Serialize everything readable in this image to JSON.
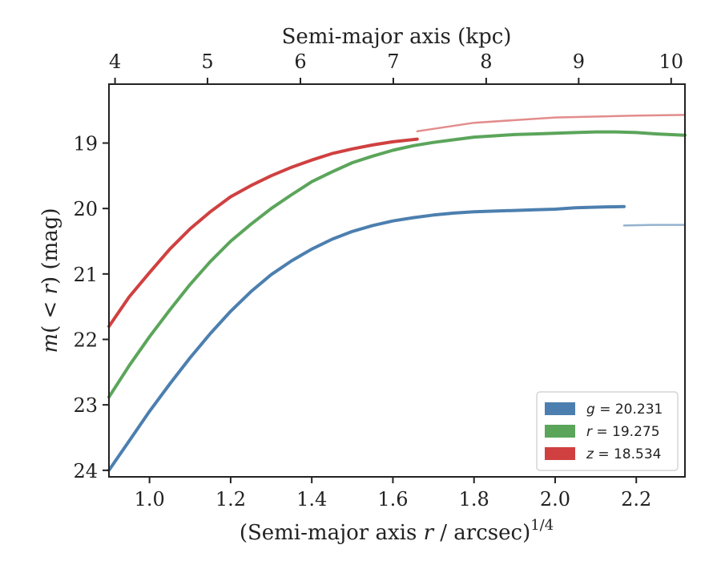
{
  "chart_data": {
    "type": "line",
    "xlabel_prefix": "(Semi-major axis ",
    "xlabel_var": "r",
    "xlabel_mid": " / arcsec)",
    "xlabel_sup": "1/4",
    "ylabel_m": "m",
    "ylabel_paren": "(",
    "ylabel_lt": " < ",
    "ylabel_r": "r",
    "ylabel_close": ")",
    "ylabel_unit": " (mag)",
    "top_xlabel": "Semi-major axis (kpc)",
    "xlim": [
      0.9,
      2.32
    ],
    "ylim": [
      24.1,
      18.1
    ],
    "y_inverted": true,
    "x_ticks": [
      "1.0",
      "1.2",
      "1.4",
      "1.6",
      "1.8",
      "2.0",
      "2.2"
    ],
    "x_tick_values": [
      1.0,
      1.2,
      1.4,
      1.6,
      1.8,
      2.0,
      2.2
    ],
    "y_ticks": [
      "19",
      "20",
      "21",
      "22",
      "23",
      "24"
    ],
    "y_tick_values": [
      19,
      20,
      21,
      22,
      23,
      24
    ],
    "top_x_ticks": [
      "4",
      "5",
      "6",
      "7",
      "8",
      "9",
      "10"
    ],
    "top_x_tick_values": [
      0.915,
      1.143,
      1.372,
      1.601,
      1.83,
      2.058,
      2.286
    ],
    "grid": false,
    "legend_position": "lower-right",
    "series": [
      {
        "name": "g",
        "label_var": "g",
        "label_value": " = 20.231",
        "color": "#4C7FAF",
        "x": [
          0.9,
          0.95,
          1.0,
          1.05,
          1.1,
          1.15,
          1.2,
          1.25,
          1.3,
          1.35,
          1.4,
          1.45,
          1.5,
          1.55,
          1.6,
          1.65,
          1.7,
          1.75,
          1.8,
          1.85,
          1.9,
          1.95,
          2.0,
          2.05,
          2.1,
          2.17
        ],
        "y": [
          24.0,
          23.55,
          23.1,
          22.68,
          22.28,
          21.91,
          21.57,
          21.27,
          21.01,
          20.8,
          20.62,
          20.47,
          20.35,
          20.26,
          20.19,
          20.14,
          20.1,
          20.07,
          20.05,
          20.04,
          20.03,
          20.02,
          20.01,
          19.99,
          19.98,
          19.97
        ],
        "x_faint": [
          2.17,
          2.24,
          2.32
        ],
        "y_faint": [
          20.26,
          20.25,
          20.25
        ]
      },
      {
        "name": "r",
        "label_var": "r",
        "label_value": " = 19.275",
        "color": "#5BA55B",
        "x": [
          0.9,
          0.95,
          1.0,
          1.05,
          1.1,
          1.15,
          1.2,
          1.25,
          1.3,
          1.35,
          1.4,
          1.45,
          1.5,
          1.55,
          1.6,
          1.65,
          1.7,
          1.75,
          1.8,
          1.85,
          1.9,
          1.95,
          2.0,
          2.05,
          2.1,
          2.15,
          2.2,
          2.25,
          2.32
        ],
        "y": [
          22.88,
          22.4,
          21.96,
          21.55,
          21.16,
          20.81,
          20.5,
          20.24,
          20.0,
          19.79,
          19.59,
          19.44,
          19.3,
          19.2,
          19.11,
          19.04,
          18.99,
          18.95,
          18.91,
          18.89,
          18.87,
          18.86,
          18.85,
          18.84,
          18.83,
          18.83,
          18.84,
          18.86,
          18.88
        ]
      },
      {
        "name": "z",
        "label_var": "z",
        "label_value": " = 18.534",
        "color": "#D04040",
        "x": [
          0.9,
          0.95,
          1.0,
          1.05,
          1.1,
          1.15,
          1.2,
          1.25,
          1.3,
          1.35,
          1.4,
          1.45,
          1.5,
          1.55,
          1.6,
          1.66
        ],
        "y": [
          21.8,
          21.35,
          20.98,
          20.62,
          20.31,
          20.05,
          19.82,
          19.65,
          19.5,
          19.37,
          19.26,
          19.16,
          19.09,
          19.03,
          18.98,
          18.94
        ],
        "x_faint": [
          1.66,
          1.8,
          2.0,
          2.2,
          2.32
        ],
        "y_faint": [
          18.82,
          18.69,
          18.61,
          18.58,
          18.57
        ]
      }
    ]
  }
}
